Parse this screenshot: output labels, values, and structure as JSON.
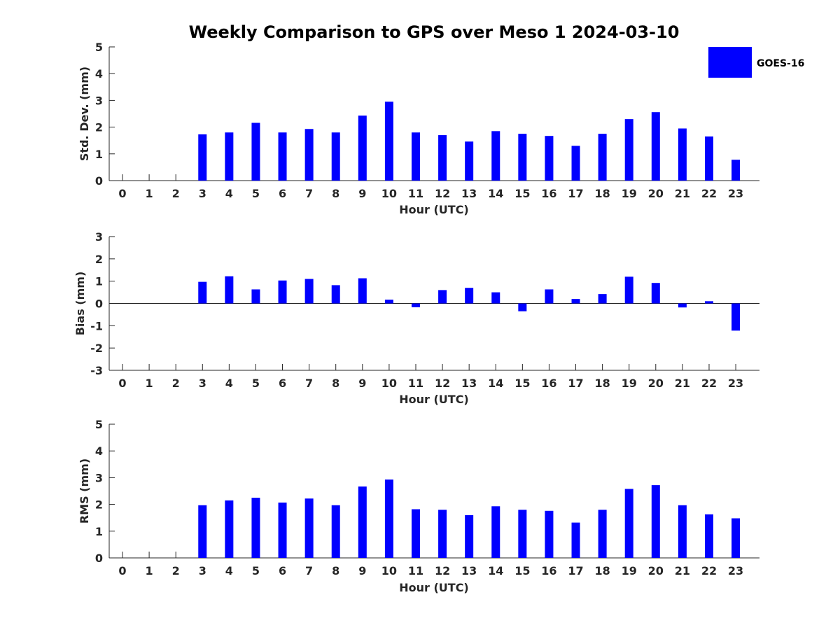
{
  "chart_data": {
    "title": "Weekly Comparison to GPS over Meso 1 2024-03-10",
    "legend": {
      "label": "GOES-16",
      "color": "#0000ff",
      "placement": "top-right"
    },
    "panels": [
      {
        "type": "bar",
        "ylabel": "Std. Dev. (mm)",
        "xlabel": "Hour (UTC)",
        "ylim": [
          0,
          5
        ],
        "yticks": [
          0,
          1,
          2,
          3,
          4,
          5
        ],
        "categories": [
          0,
          1,
          2,
          3,
          4,
          5,
          6,
          7,
          8,
          9,
          10,
          11,
          12,
          13,
          14,
          15,
          16,
          17,
          18,
          19,
          20,
          21,
          22,
          23
        ],
        "values": [
          null,
          null,
          null,
          1.73,
          1.8,
          2.16,
          1.8,
          1.93,
          1.8,
          2.43,
          2.95,
          1.8,
          1.7,
          1.46,
          1.85,
          1.75,
          1.67,
          1.3,
          1.75,
          2.3,
          2.56,
          1.95,
          1.65,
          0.78
        ]
      },
      {
        "type": "bar",
        "ylabel": "Bias (mm)",
        "xlabel": "Hour (UTC)",
        "ylim": [
          -3,
          3
        ],
        "yticks": [
          -3,
          -2,
          -1,
          0,
          1,
          2,
          3
        ],
        "zeroline": true,
        "categories": [
          0,
          1,
          2,
          3,
          4,
          5,
          6,
          7,
          8,
          9,
          10,
          11,
          12,
          13,
          14,
          15,
          16,
          17,
          18,
          19,
          20,
          21,
          22,
          23
        ],
        "values": [
          null,
          null,
          null,
          0.97,
          1.22,
          0.63,
          1.03,
          1.1,
          0.82,
          1.13,
          0.17,
          -0.17,
          0.6,
          0.7,
          0.5,
          -0.35,
          0.63,
          0.2,
          0.42,
          1.2,
          0.92,
          -0.18,
          0.1,
          -1.22
        ]
      },
      {
        "type": "bar",
        "ylabel": "RMS (mm)",
        "xlabel": "Hour (UTC)",
        "ylim": [
          0,
          5
        ],
        "yticks": [
          0,
          1,
          2,
          3,
          4,
          5
        ],
        "categories": [
          0,
          1,
          2,
          3,
          4,
          5,
          6,
          7,
          8,
          9,
          10,
          11,
          12,
          13,
          14,
          15,
          16,
          17,
          18,
          19,
          20,
          21,
          22,
          23
        ],
        "values": [
          null,
          null,
          null,
          1.97,
          2.15,
          2.25,
          2.07,
          2.22,
          1.97,
          2.67,
          2.93,
          1.82,
          1.8,
          1.6,
          1.93,
          1.8,
          1.76,
          1.32,
          1.8,
          2.58,
          2.72,
          1.97,
          1.63,
          1.48
        ]
      }
    ]
  }
}
